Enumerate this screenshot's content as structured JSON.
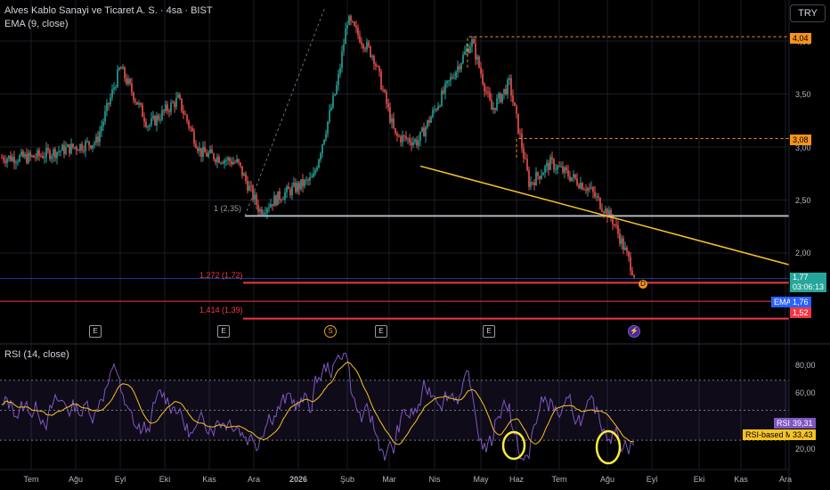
{
  "header": {
    "title": "Alves Kablo Sanayi ve Ticaret A. S. · 4sa · BIST",
    "ema_label": "EMA (9, close)",
    "currency": "TRY"
  },
  "price_axis": {
    "ticks": [
      "4,00",
      "3,50",
      "3,00",
      "2,50",
      "2,00"
    ],
    "tags": {
      "level_high": "4,04",
      "level_mid": "3,08",
      "last_price": "1,77",
      "countdown": "03:06:13",
      "ema_name": "EMA",
      "ema_value": "1,76",
      "fib_low": "1,52"
    }
  },
  "fib_labels": {
    "fib_1": "1 (2,35)",
    "fib_1272": "1,272 (1,72)",
    "fib_1414": "1,414 (1,39)"
  },
  "events": [
    {
      "kind": "earnings",
      "glyph": "E"
    },
    {
      "kind": "earnings",
      "glyph": "E"
    },
    {
      "kind": "dividend",
      "glyph": "S"
    },
    {
      "kind": "earnings",
      "glyph": "E"
    },
    {
      "kind": "earnings",
      "glyph": "E"
    },
    {
      "kind": "split",
      "glyph": "⚡"
    }
  ],
  "pattern_marker": "D",
  "rsi": {
    "label": "RSI (14, close)",
    "ticks": [
      "80,00",
      "60,00",
      "20,00"
    ],
    "rsi_name": "RSI",
    "rsi_value": "39,31",
    "ma_name": "RSI-based MA",
    "ma_value": "33,43"
  },
  "time_axis": [
    "Tem",
    "Ağu",
    "Eyl",
    "Eki",
    "Kas",
    "Ara",
    "2026",
    "Şub",
    "Mar",
    "Nis",
    "May",
    "Haz",
    "Tem",
    "Ağu",
    "Eyl",
    "Eki",
    "Kas",
    "Ara"
  ],
  "chart_data": {
    "type": "candlestick",
    "price_range": [
      1.3,
      4.3
    ],
    "key_points": [
      {
        "date": "2025-07",
        "price": 2.9
      },
      {
        "date": "2025-08-15",
        "price": 3.05
      },
      {
        "date": "2025-09-01",
        "price": 3.75
      },
      {
        "date": "2025-09-20",
        "price": 3.2
      },
      {
        "date": "2025-10-10",
        "price": 3.45
      },
      {
        "date": "2025-10-25",
        "price": 2.95
      },
      {
        "date": "2025-11-20",
        "price": 2.85
      },
      {
        "date": "2025-12-05",
        "price": 2.4
      },
      {
        "date": "2025-12-20",
        "price": 2.55
      },
      {
        "date": "2026-01-10",
        "price": 2.7
      },
      {
        "date": "2026-01-25",
        "price": 3.6
      },
      {
        "date": "2026-02-01",
        "price": 4.2
      },
      {
        "date": "2026-02-20",
        "price": 3.85
      },
      {
        "date": "2026-03-05",
        "price": 3.1
      },
      {
        "date": "2026-03-20",
        "price": 3.05
      },
      {
        "date": "2026-04-10",
        "price": 3.6
      },
      {
        "date": "2026-04-25",
        "price": 4.0
      },
      {
        "date": "2026-05-10",
        "price": 3.35
      },
      {
        "date": "2026-05-25",
        "price": 3.6
      },
      {
        "date": "2026-06-10",
        "price": 2.65
      },
      {
        "date": "2026-06-25",
        "price": 2.85
      },
      {
        "date": "2026-07-20",
        "price": 2.6
      },
      {
        "date": "2026-08-05",
        "price": 2.3
      },
      {
        "date": "2026-08-20",
        "price": 1.77
      }
    ],
    "levels": {
      "fib_1": 2.35,
      "fib_1272": 1.72,
      "fib_1414": 1.39,
      "high": 4.04,
      "mid": 3.08,
      "low_tag": 1.52
    },
    "trendline": {
      "from_price": 2.82,
      "to_price": 1.89
    },
    "rsi_range": [
      10,
      90
    ],
    "rsi_last": 39.31,
    "rsi_ma_last": 33.43
  },
  "colors": {
    "background": "#000000",
    "bull": "#26a69a",
    "bear": "#ef5350",
    "fib_line": "#f23645",
    "support_line": "#b2b5be",
    "trendline": "#f7c325",
    "dashed_level": "#f7931a",
    "rsi_line": "#7e57c2",
    "rsi_ma": "#f7c325"
  }
}
